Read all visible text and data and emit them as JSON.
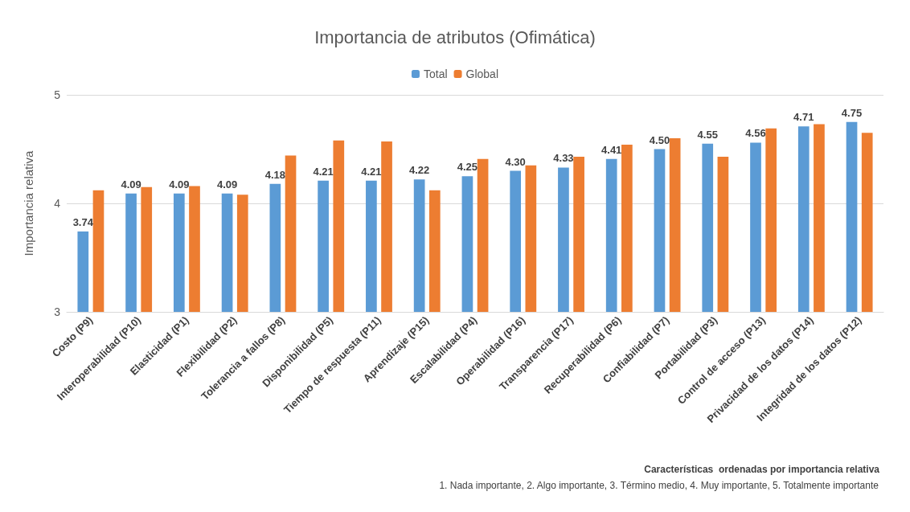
{
  "chart_data": {
    "type": "bar",
    "title": "Importancia de atributos (Ofimática)",
    "ylabel": "Importancia relativa",
    "categories": [
      "Costo (P9)",
      "Interoperabilidad (P10)",
      "Elasticidad (P1)",
      "Flexibilidad (P2)",
      "Tolerancia a fallos (P8)",
      "Disponibilidad (P5)",
      "Tiempo de respuesta (P11)",
      "Aprendizaje (P15)",
      "Escalabilidad (P4)",
      "Operabilidad (P16)",
      "Transparencia (P17)",
      "Recuperabilidad (P6)",
      "Confiabilidad (P7)",
      "Portabilidad (P3)",
      "Control de acceso (P13)",
      "Privacidad de los datos (P14)",
      "Integridad de los datos (P12)"
    ],
    "series": [
      {
        "name": "Total",
        "color": "#5b9bd5",
        "values": [
          3.74,
          4.09,
          4.09,
          4.09,
          4.18,
          4.21,
          4.21,
          4.22,
          4.25,
          4.3,
          4.33,
          4.41,
          4.5,
          4.55,
          4.56,
          4.71,
          4.75
        ],
        "value_labels": [
          "3.74",
          "4.09",
          "4.09",
          "4.09",
          "4.18",
          "4.21",
          "4.21",
          "4.22",
          "4.25",
          "4.30",
          "4.33",
          "4.41",
          "4.50",
          "4.55",
          "4.56",
          "4.71",
          "4.75"
        ]
      },
      {
        "name": "Global",
        "color": "#ed7d31",
        "values": [
          4.12,
          4.15,
          4.16,
          4.08,
          4.44,
          4.58,
          4.57,
          4.12,
          4.41,
          4.35,
          4.43,
          4.54,
          4.6,
          4.43,
          4.69,
          4.73,
          4.65
        ]
      }
    ],
    "ylim": [
      3,
      5
    ],
    "yticks": [
      3,
      4,
      5
    ],
    "grid": "y",
    "legend": "top",
    "annotations": [
      "Características  ordenadas por importancia relativa",
      "1. Nada importante, 2. Algo importante, 3. Término medio, 4. Muy importante, 5. Totalmente importante"
    ]
  }
}
